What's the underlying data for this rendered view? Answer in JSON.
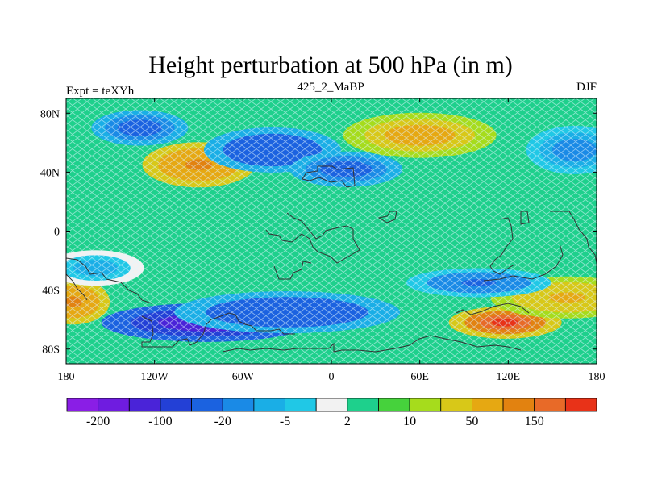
{
  "chart_data": {
    "type": "heatmap",
    "title": "Height perturbation at 500 hPa (in m)",
    "left_string": "Expt = teXYh",
    "center_string": "425_2_MaBP",
    "right_string": "DJF",
    "x_range": [
      -180,
      180
    ],
    "y_range": [
      -90,
      90
    ],
    "x_ticks": [
      {
        "value": -180,
        "label": "180"
      },
      {
        "value": -120,
        "label": "120W"
      },
      {
        "value": -60,
        "label": "60W"
      },
      {
        "value": 0,
        "label": "0"
      },
      {
        "value": 60,
        "label": "60E"
      },
      {
        "value": 120,
        "label": "120E"
      },
      {
        "value": 180,
        "label": "180"
      }
    ],
    "y_ticks": [
      {
        "value": 80,
        "label": "80N"
      },
      {
        "value": 40,
        "label": "40N"
      },
      {
        "value": 0,
        "label": "0"
      },
      {
        "value": -40,
        "label": "40S"
      },
      {
        "value": -80,
        "label": "80S"
      }
    ],
    "background_level": 2,
    "field_features": [
      {
        "lon": -90,
        "lat": 45,
        "value": 100
      },
      {
        "lon": 60,
        "lat": 65,
        "value": 70
      },
      {
        "lon": 118,
        "lat": -62,
        "value": 200
      },
      {
        "lon": -175,
        "lat": -48,
        "value": 100
      },
      {
        "lon": 160,
        "lat": -45,
        "value": 60
      },
      {
        "lon": -40,
        "lat": 55,
        "value": -50
      },
      {
        "lon": 10,
        "lat": 42,
        "value": -40
      },
      {
        "lon": -130,
        "lat": 70,
        "value": -30
      },
      {
        "lon": 165,
        "lat": 55,
        "value": -20
      },
      {
        "lon": -85,
        "lat": -62,
        "value": -150
      },
      {
        "lon": -30,
        "lat": -55,
        "value": -50
      },
      {
        "lon": 100,
        "lat": -35,
        "value": -25
      },
      {
        "lon": -160,
        "lat": -25,
        "value": -10
      }
    ],
    "colorbar": {
      "colors": [
        "#8a1ee6",
        "#6f1ce0",
        "#4a23d8",
        "#2340d6",
        "#1b62e0",
        "#1a8ae6",
        "#1aaee6",
        "#20c8e6",
        "#f2f2f2",
        "#1ed08c",
        "#46d23c",
        "#a6dc1c",
        "#d8c818",
        "#e6a812",
        "#e28210",
        "#e86a28",
        "#e83218"
      ],
      "levels": [
        -200,
        -150,
        -100,
        -50,
        -20,
        -10,
        -5,
        -2,
        2,
        5,
        10,
        20,
        50,
        100,
        150,
        200
      ],
      "labels": [
        {
          "after_box": 1,
          "label": "-200"
        },
        {
          "after_box": 3,
          "label": "-100"
        },
        {
          "after_box": 5,
          "label": "-20"
        },
        {
          "after_box": 7,
          "label": "-5"
        },
        {
          "after_box": 9,
          "label": "2"
        },
        {
          "after_box": 11,
          "label": "10"
        },
        {
          "after_box": 13,
          "label": "50"
        },
        {
          "after_box": 15,
          "label": "150"
        }
      ]
    }
  }
}
